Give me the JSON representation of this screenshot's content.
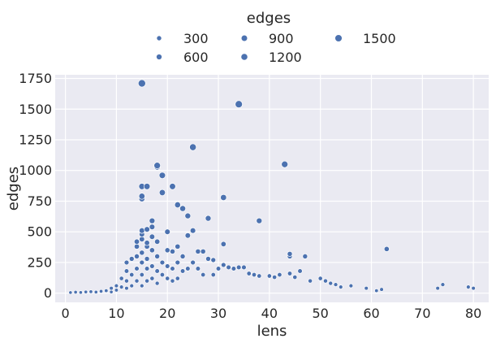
{
  "chart_data": {
    "type": "scatter",
    "title": "",
    "xlabel": "lens",
    "ylabel": "edges",
    "xlim": [
      -2,
      83
    ],
    "ylim": [
      -75,
      1780
    ],
    "xticks": [
      0,
      10,
      20,
      30,
      40,
      50,
      60,
      70,
      80
    ],
    "yticks": [
      0,
      250,
      500,
      750,
      1000,
      1250,
      1500,
      1750
    ],
    "grid": true,
    "background": "#eaeaf2",
    "point_color": "#4c72b0",
    "legend": {
      "title": "edges",
      "placement": "top-center-outside",
      "entries": [
        {
          "label": "300",
          "size": 300
        },
        {
          "label": "900",
          "size": 900
        },
        {
          "label": "1500",
          "size": 1500
        },
        {
          "label": "600",
          "size": 600
        },
        {
          "label": "1200",
          "size": 1200
        }
      ]
    },
    "size_variable": "edges",
    "points": [
      {
        "x": 1,
        "y": 5
      },
      {
        "x": 2,
        "y": 8
      },
      {
        "x": 3,
        "y": 6
      },
      {
        "x": 4,
        "y": 10
      },
      {
        "x": 5,
        "y": 12
      },
      {
        "x": 6,
        "y": 9
      },
      {
        "x": 7,
        "y": 15
      },
      {
        "x": 8,
        "y": 20
      },
      {
        "x": 9,
        "y": 40
      },
      {
        "x": 9,
        "y": 10
      },
      {
        "x": 10,
        "y": 60
      },
      {
        "x": 10,
        "y": 25
      },
      {
        "x": 11,
        "y": 120
      },
      {
        "x": 11,
        "y": 50
      },
      {
        "x": 12,
        "y": 250
      },
      {
        "x": 12,
        "y": 180
      },
      {
        "x": 12,
        "y": 100
      },
      {
        "x": 12,
        "y": 40
      },
      {
        "x": 13,
        "y": 280
      },
      {
        "x": 13,
        "y": 150
      },
      {
        "x": 13,
        "y": 60
      },
      {
        "x": 14,
        "y": 420
      },
      {
        "x": 14,
        "y": 380
      },
      {
        "x": 14,
        "y": 300
      },
      {
        "x": 14,
        "y": 200
      },
      {
        "x": 14,
        "y": 100
      },
      {
        "x": 15,
        "y": 1710
      },
      {
        "x": 15,
        "y": 870
      },
      {
        "x": 15,
        "y": 790
      },
      {
        "x": 15,
        "y": 770
      },
      {
        "x": 15,
        "y": 510
      },
      {
        "x": 15,
        "y": 480
      },
      {
        "x": 15,
        "y": 440
      },
      {
        "x": 15,
        "y": 330
      },
      {
        "x": 15,
        "y": 250
      },
      {
        "x": 15,
        "y": 150
      },
      {
        "x": 15,
        "y": 60
      },
      {
        "x": 16,
        "y": 870
      },
      {
        "x": 16,
        "y": 520
      },
      {
        "x": 16,
        "y": 410
      },
      {
        "x": 16,
        "y": 380
      },
      {
        "x": 16,
        "y": 280
      },
      {
        "x": 16,
        "y": 200
      },
      {
        "x": 16,
        "y": 100
      },
      {
        "x": 17,
        "y": 590
      },
      {
        "x": 17,
        "y": 540
      },
      {
        "x": 17,
        "y": 460
      },
      {
        "x": 17,
        "y": 350
      },
      {
        "x": 17,
        "y": 220
      },
      {
        "x": 17,
        "y": 120
      },
      {
        "x": 18,
        "y": 1040
      },
      {
        "x": 18,
        "y": 1030
      },
      {
        "x": 18,
        "y": 420
      },
      {
        "x": 18,
        "y": 300
      },
      {
        "x": 18,
        "y": 180
      },
      {
        "x": 18,
        "y": 80
      },
      {
        "x": 19,
        "y": 960
      },
      {
        "x": 19,
        "y": 820
      },
      {
        "x": 19,
        "y": 250
      },
      {
        "x": 19,
        "y": 150
      },
      {
        "x": 20,
        "y": 500
      },
      {
        "x": 20,
        "y": 350
      },
      {
        "x": 20,
        "y": 220
      },
      {
        "x": 20,
        "y": 120
      },
      {
        "x": 21,
        "y": 870
      },
      {
        "x": 21,
        "y": 340
      },
      {
        "x": 21,
        "y": 200
      },
      {
        "x": 21,
        "y": 100
      },
      {
        "x": 22,
        "y": 720
      },
      {
        "x": 22,
        "y": 380
      },
      {
        "x": 22,
        "y": 250
      },
      {
        "x": 22,
        "y": 120
      },
      {
        "x": 23,
        "y": 690
      },
      {
        "x": 23,
        "y": 300
      },
      {
        "x": 23,
        "y": 180
      },
      {
        "x": 24,
        "y": 630
      },
      {
        "x": 24,
        "y": 470
      },
      {
        "x": 24,
        "y": 200
      },
      {
        "x": 25,
        "y": 1190
      },
      {
        "x": 25,
        "y": 510
      },
      {
        "x": 25,
        "y": 250
      },
      {
        "x": 26,
        "y": 340
      },
      {
        "x": 26,
        "y": 200
      },
      {
        "x": 27,
        "y": 340
      },
      {
        "x": 27,
        "y": 150
      },
      {
        "x": 28,
        "y": 610
      },
      {
        "x": 28,
        "y": 280
      },
      {
        "x": 29,
        "y": 270
      },
      {
        "x": 29,
        "y": 150
      },
      {
        "x": 30,
        "y": 200
      },
      {
        "x": 31,
        "y": 780
      },
      {
        "x": 31,
        "y": 400
      },
      {
        "x": 31,
        "y": 230
      },
      {
        "x": 32,
        "y": 210
      },
      {
        "x": 33,
        "y": 200
      },
      {
        "x": 34,
        "y": 1540
      },
      {
        "x": 34,
        "y": 210
      },
      {
        "x": 35,
        "y": 210
      },
      {
        "x": 36,
        "y": 160
      },
      {
        "x": 37,
        "y": 150
      },
      {
        "x": 38,
        "y": 590
      },
      {
        "x": 38,
        "y": 140
      },
      {
        "x": 40,
        "y": 140
      },
      {
        "x": 41,
        "y": 130
      },
      {
        "x": 42,
        "y": 150
      },
      {
        "x": 43,
        "y": 1050
      },
      {
        "x": 44,
        "y": 320
      },
      {
        "x": 44,
        "y": 300
      },
      {
        "x": 44,
        "y": 160
      },
      {
        "x": 45,
        "y": 130
      },
      {
        "x": 46,
        "y": 180
      },
      {
        "x": 47,
        "y": 300
      },
      {
        "x": 48,
        "y": 100
      },
      {
        "x": 50,
        "y": 120
      },
      {
        "x": 51,
        "y": 100
      },
      {
        "x": 52,
        "y": 80
      },
      {
        "x": 53,
        "y": 70
      },
      {
        "x": 54,
        "y": 50
      },
      {
        "x": 56,
        "y": 60
      },
      {
        "x": 59,
        "y": 40
      },
      {
        "x": 61,
        "y": 20
      },
      {
        "x": 62,
        "y": 30
      },
      {
        "x": 63,
        "y": 360
      },
      {
        "x": 73,
        "y": 40
      },
      {
        "x": 74,
        "y": 70
      },
      {
        "x": 79,
        "y": 50
      },
      {
        "x": 80,
        "y": 40
      }
    ]
  }
}
